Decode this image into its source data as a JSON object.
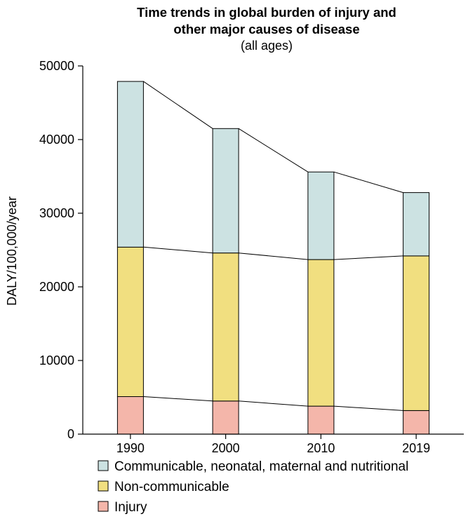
{
  "chart_data": {
    "type": "bar",
    "stacked": true,
    "title_line1": "Time trends in global burden of injury and",
    "title_line2": "other major causes of disease",
    "subtitle": "(all ages)",
    "xlabel": "",
    "ylabel": "DALY/100,000/year",
    "ylim": [
      0,
      50000
    ],
    "yticks": [
      0,
      10000,
      20000,
      30000,
      40000,
      50000
    ],
    "ytick_labels": [
      "0",
      "10000",
      "20000",
      "30000",
      "40000",
      "50000"
    ],
    "categories": [
      "1990",
      "2000",
      "2010",
      "2019"
    ],
    "series": [
      {
        "name": "Injury",
        "color": "#f4b6aa",
        "values": [
          5100,
          4500,
          3800,
          3200
        ]
      },
      {
        "name": "Non-communicable",
        "color": "#f1df80",
        "values": [
          20300,
          20100,
          19900,
          21000
        ]
      },
      {
        "name": "Communicable, neonatal, maternal and nutritional",
        "color": "#cce2e2",
        "values": [
          22500,
          16900,
          11900,
          8600
        ]
      }
    ],
    "legend_order": [
      2,
      1,
      0
    ],
    "legend_position": "bottom-left",
    "grid": false,
    "connector_lines": true
  }
}
